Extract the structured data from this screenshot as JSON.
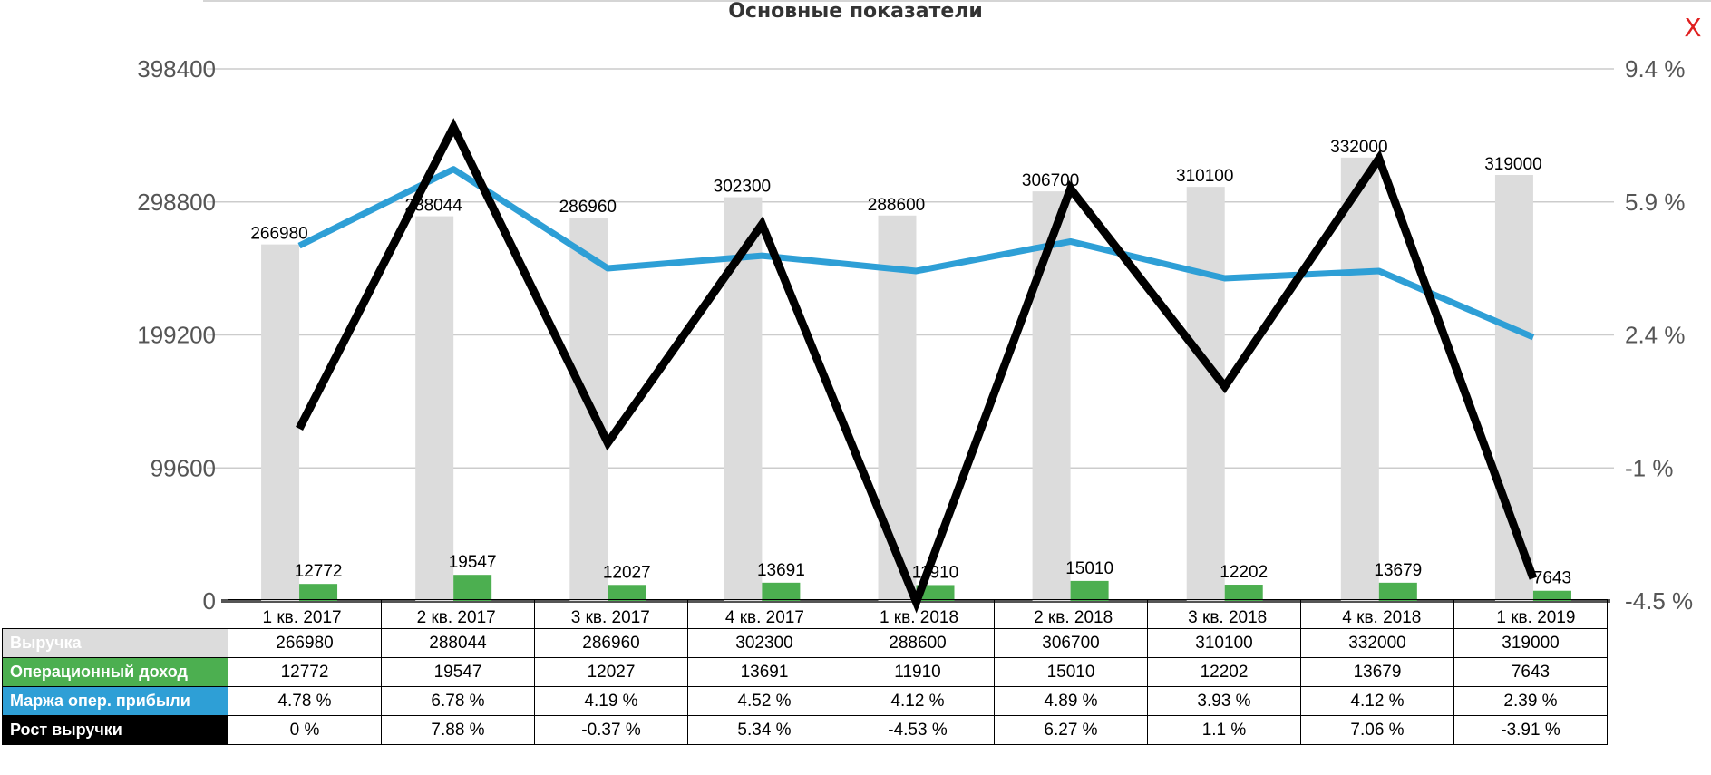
{
  "title": "Основные показатели",
  "close_label": "X",
  "colors": {
    "revenue": "#dcdcdc",
    "op_income": "#4caf50",
    "margin": "#2e9fd6",
    "growth": "#000000",
    "grid": "#cccccc",
    "axis": "#555555",
    "close": "#e02020"
  },
  "chart_data": {
    "type": "bar",
    "title": "Основные показатели",
    "categories": [
      "1 кв. 2017",
      "2 кв. 2017",
      "3 кв. 2017",
      "4 кв. 2017",
      "1 кв. 2018",
      "2 кв. 2018",
      "3 кв. 2018",
      "4 кв. 2018",
      "1 кв. 2019"
    ],
    "y_left": {
      "ticks": [
        "0",
        "99600",
        "199200",
        "298800",
        "398400"
      ],
      "range": [
        0,
        398400
      ]
    },
    "y_right": {
      "ticks": [
        "-4.5 %",
        "-1 %",
        "2.4 %",
        "5.9 %",
        "9.4 %"
      ],
      "range": [
        -4.5,
        9.4
      ]
    },
    "grid": true,
    "series": [
      {
        "name": "Выручка",
        "type": "bar",
        "axis": "left",
        "values": [
          266980,
          288044,
          286960,
          302300,
          288600,
          306700,
          310100,
          332000,
          319000
        ]
      },
      {
        "name": "Операционный доход",
        "type": "bar",
        "axis": "left",
        "values": [
          12772,
          19547,
          12027,
          13691,
          11910,
          15010,
          12202,
          13679,
          7643
        ]
      },
      {
        "name": "Маржа опер. прибыли",
        "type": "line",
        "axis": "right",
        "values": [
          4.78,
          6.78,
          4.19,
          4.52,
          4.12,
          4.89,
          3.93,
          4.12,
          2.39
        ]
      },
      {
        "name": "Рост выручки",
        "type": "line",
        "axis": "right",
        "values": [
          0,
          7.88,
          -0.37,
          5.34,
          -4.53,
          6.27,
          1.1,
          7.06,
          -3.91
        ]
      }
    ]
  },
  "table": {
    "header": [
      "1 кв. 2017",
      "2 кв. 2017",
      "3 кв. 2017",
      "4 кв. 2017",
      "1 кв. 2018",
      "2 кв. 2018",
      "3 кв. 2018",
      "4 кв. 2018",
      "1 кв. 2019"
    ],
    "rows": [
      {
        "label": "Выручка",
        "cells": [
          "266980",
          "288044",
          "286960",
          "302300",
          "288600",
          "306700",
          "310100",
          "332000",
          "319000"
        ]
      },
      {
        "label": "Операционный доход",
        "cells": [
          "12772",
          "19547",
          "12027",
          "13691",
          "11910",
          "15010",
          "12202",
          "13679",
          "7643"
        ]
      },
      {
        "label": "Маржа опер. прибыли",
        "cells": [
          "4.78 %",
          "6.78 %",
          "4.19 %",
          "4.52 %",
          "4.12 %",
          "4.89 %",
          "3.93 %",
          "4.12 %",
          "2.39 %"
        ]
      },
      {
        "label": "Рост выручки",
        "cells": [
          "0 %",
          "7.88 %",
          "-0.37 %",
          "5.34 %",
          "-4.53 %",
          "6.27 %",
          "1.1 %",
          "7.06 %",
          "-3.91 %"
        ]
      }
    ]
  }
}
